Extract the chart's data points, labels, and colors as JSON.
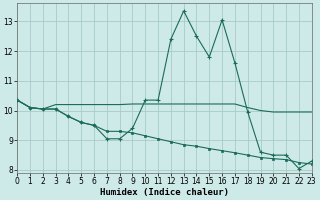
{
  "xlabel": "Humidex (Indice chaleur)",
  "bg_color": "#ceeae8",
  "grid_color": "#a8cbc8",
  "line_color": "#1a6b5a",
  "x_values": [
    0,
    1,
    2,
    3,
    4,
    5,
    6,
    7,
    8,
    9,
    10,
    11,
    12,
    13,
    14,
    15,
    16,
    17,
    18,
    19,
    20,
    21,
    22,
    23
  ],
  "series1": [
    10.35,
    10.1,
    10.05,
    10.05,
    9.8,
    9.6,
    9.5,
    9.05,
    9.05,
    9.4,
    10.35,
    10.35,
    12.4,
    13.35,
    12.5,
    11.8,
    13.05,
    11.6,
    9.95,
    8.6,
    8.5,
    8.5,
    8.05,
    8.3
  ],
  "series2": [
    10.35,
    10.1,
    10.05,
    10.2,
    10.2,
    10.2,
    10.2,
    10.2,
    10.2,
    10.22,
    10.22,
    10.22,
    10.22,
    10.22,
    10.22,
    10.22,
    10.22,
    10.22,
    10.1,
    10.0,
    9.95,
    9.95,
    9.95,
    9.95
  ],
  "series3": [
    10.35,
    10.1,
    10.05,
    10.05,
    9.8,
    9.6,
    9.5,
    9.3,
    9.3,
    9.25,
    9.15,
    9.05,
    8.95,
    8.85,
    8.8,
    8.72,
    8.65,
    8.58,
    8.5,
    8.42,
    8.38,
    8.35,
    8.25,
    8.2
  ],
  "xlim": [
    0,
    23
  ],
  "ylim": [
    7.9,
    13.6
  ],
  "yticks": [
    8,
    9,
    10,
    11,
    12,
    13
  ],
  "xticks": [
    0,
    1,
    2,
    3,
    4,
    5,
    6,
    7,
    8,
    9,
    10,
    11,
    12,
    13,
    14,
    15,
    16,
    17,
    18,
    19,
    20,
    21,
    22,
    23
  ],
  "tick_fontsize": 5.5,
  "xlabel_fontsize": 6.5
}
